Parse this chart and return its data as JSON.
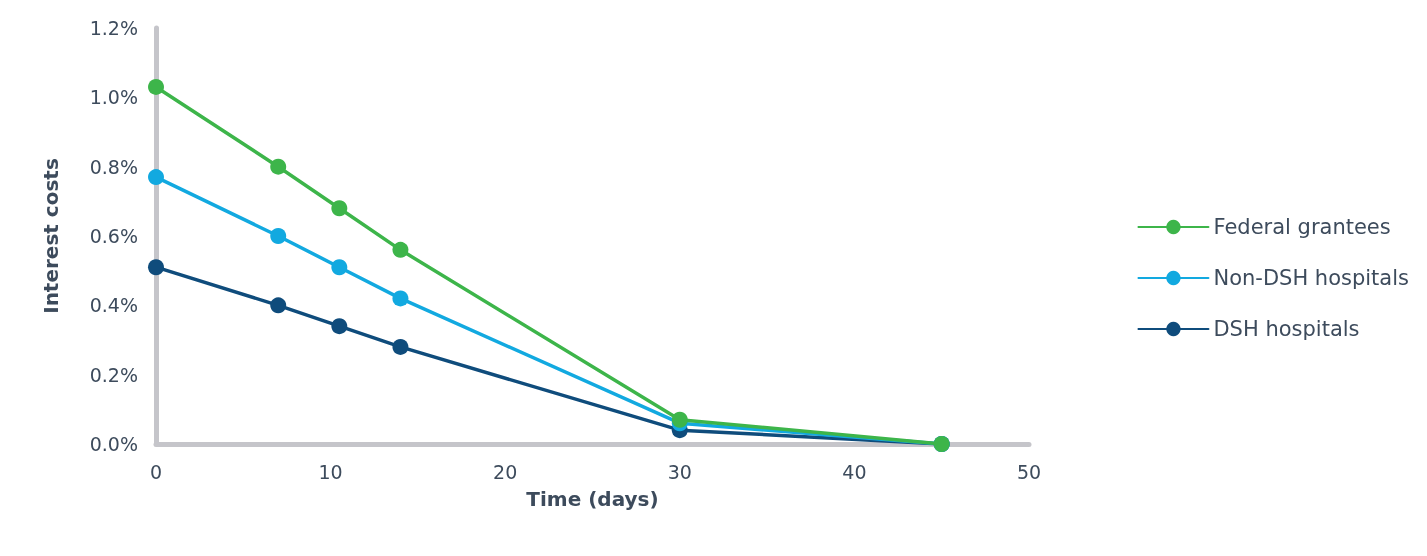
{
  "chart_data": {
    "type": "line",
    "xlabel": "Time (days)",
    "ylabel": "Interest costs",
    "xlim": [
      0,
      50
    ],
    "xticks": [
      0,
      10,
      20,
      30,
      40,
      50
    ],
    "ylim": [
      0,
      1.2
    ],
    "yticks": [
      {
        "value": 0,
        "label": "0.0%"
      },
      {
        "value": 0.2,
        "label": "0.2%"
      },
      {
        "value": 0.4,
        "label": "0.4%"
      },
      {
        "value": 0.6,
        "label": "0.6%"
      },
      {
        "value": 0.8,
        "label": "0.8%"
      },
      {
        "value": 1.0,
        "label": "1.0%"
      },
      {
        "value": 1.2,
        "label": "1.2%"
      }
    ],
    "x": [
      0,
      7,
      10.5,
      14,
      30,
      45
    ],
    "series": [
      {
        "name": "Federal grantees",
        "color": "#3db54a",
        "values": [
          1.03,
          0.8,
          0.68,
          0.56,
          0.07,
          0
        ]
      },
      {
        "name": "Non-DSH hospitals",
        "color": "#12a9e0",
        "values": [
          0.77,
          0.6,
          0.51,
          0.42,
          0.06,
          0
        ]
      },
      {
        "name": "DSH hospitals",
        "color": "#0f4c7c",
        "values": [
          0.51,
          0.4,
          0.34,
          0.28,
          0.04,
          0
        ]
      }
    ],
    "grid": false,
    "legend": "right",
    "marker": "circle",
    "line_style": "solid"
  }
}
